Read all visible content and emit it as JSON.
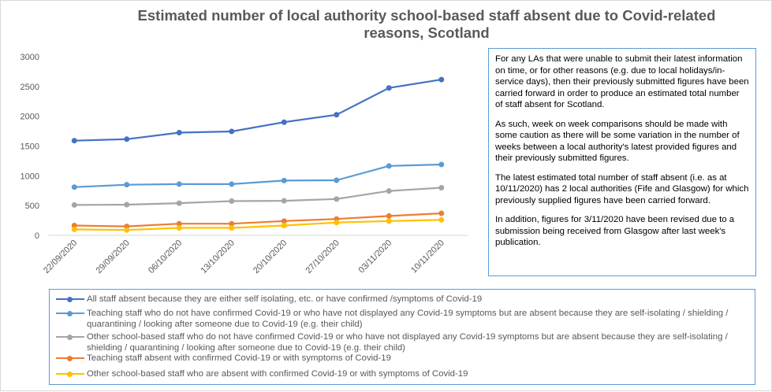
{
  "chart_data": {
    "type": "line",
    "title": "Estimated number of local authority school-based staff absent due to Covid-related reasons, Scotland",
    "xlabel": "",
    "ylabel": "",
    "ylim": [
      0,
      3000
    ],
    "yticks": [
      "0",
      "500",
      "1000",
      "1500",
      "2000",
      "2500",
      "3000"
    ],
    "grid": false,
    "legend_position": "bottom",
    "categories": [
      "22/09/2020",
      "29/09/2020",
      "06/10/2020",
      "13/10/2020",
      "20/10/2020",
      "27/10/2020",
      "03/11/2020",
      "10/11/2020"
    ],
    "series": [
      {
        "name": "All staff absent because they are either self isolating, etc. or have confirmed /symptoms of Covid-19",
        "color": "#4472c4",
        "values": [
          1590,
          1615,
          1725,
          1745,
          1900,
          2025,
          2475,
          2615
        ]
      },
      {
        "name": "Teaching staff who do not have confirmed Covid-19 or who have not displayed any Covid-19 symptoms but are absent because they are self-isolating / shielding / quarantining / looking after someone due to Covid-19 (e.g. their child)",
        "color": "#5b9bd5",
        "values": [
          810,
          850,
          860,
          860,
          920,
          925,
          1165,
          1190
        ]
      },
      {
        "name": "Other school-based staff who do not have confirmed Covid-19 or who have not displayed any Covid-19 symptoms but are absent because they are self-isolating / shielding / quarantining / looking after someone due to Covid-19 (e.g. their child)",
        "color": "#a5a5a5",
        "values": [
          510,
          515,
          540,
          575,
          580,
          610,
          745,
          800
        ]
      },
      {
        "name": "Teaching staff absent with confirmed Covid-19 or with symptoms of Covid-19",
        "color": "#ed7d31",
        "values": [
          165,
          150,
          195,
          195,
          240,
          275,
          325,
          370
        ]
      },
      {
        "name": "Other school-based staff who are absent with confirmed Covid-19 or with symptoms of Covid-19",
        "color": "#ffc000",
        "values": [
          100,
          90,
          125,
          125,
          165,
          215,
          240,
          260
        ]
      }
    ]
  },
  "note": [
    "For any LAs that were unable to submit their latest information on time, or for other reasons (e.g. due to local holidays/in-service days), then their previously submitted figures have been carried forward in order to produce an estimated total number of staff absent for Scotland.",
    "As such, week on week comparisons should be made with some caution as there will be some variation in the number of weeks between a local authority's latest provided figures and their previously submitted figures.",
    "The latest estimated total number of staff absent (i.e. as at 10/11/2020) has 2 local authorities (Fife and Glasgow) for which previously supplied figures have been carried forward.",
    "In addition, figures for 3/11/2020 have been revised due to a submission being received from Glasgow after last week's publication."
  ]
}
